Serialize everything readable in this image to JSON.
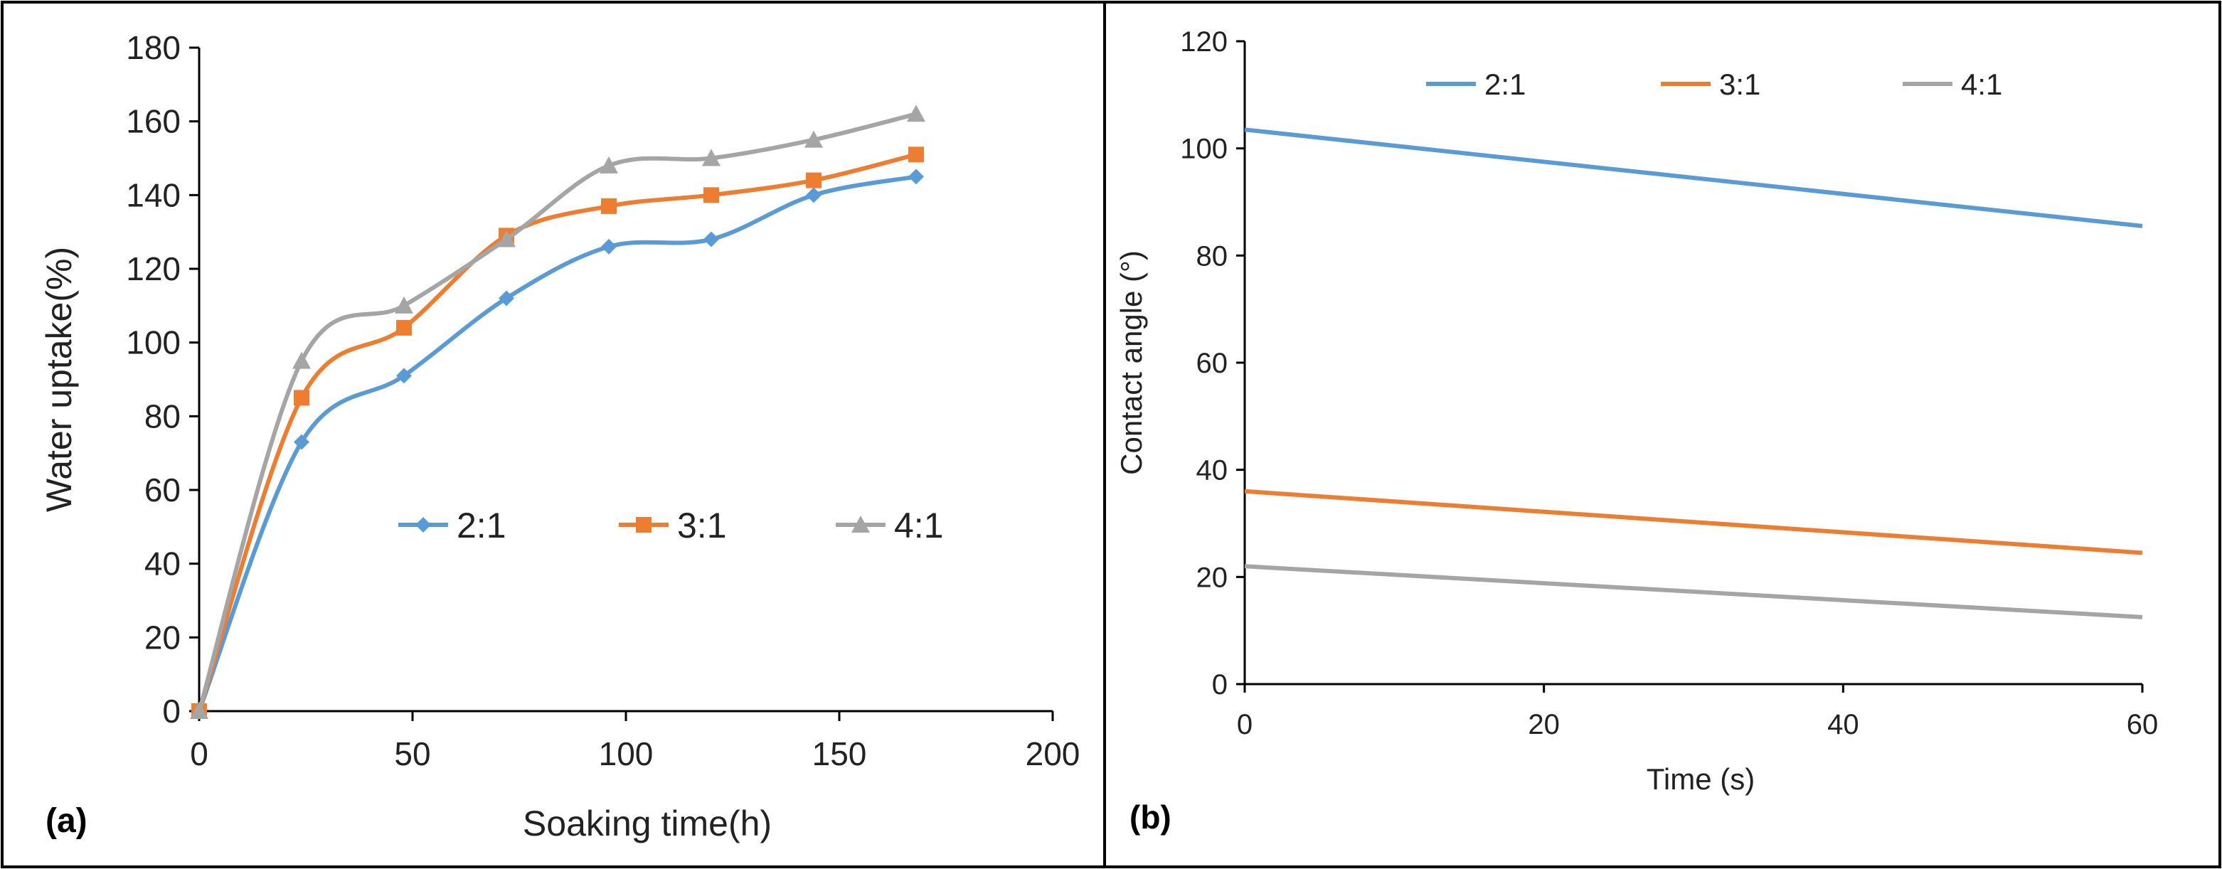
{
  "colors": {
    "series_blue": "#5B9BD5",
    "series_orange": "#ED7D31",
    "series_gray": "#A5A5A5",
    "axis": "#000000",
    "border": "#000000"
  },
  "chart_data": [
    {
      "type": "line",
      "panel_label": "(a)",
      "xlabel": "Soaking time(h)",
      "ylabel": "Water uptake(%)",
      "xlim": [
        0,
        200
      ],
      "ylim": [
        0,
        180
      ],
      "x_ticks": [
        0,
        50,
        100,
        150,
        200
      ],
      "y_ticks": [
        0,
        20,
        40,
        60,
        80,
        100,
        120,
        140,
        160,
        180
      ],
      "x_tick_labels": [
        "0",
        "50",
        "100",
        "150",
        "200"
      ],
      "y_tick_labels": [
        "0",
        "20",
        "40",
        "60",
        "80",
        "100",
        "120",
        "140",
        "160",
        "180"
      ],
      "grid": false,
      "smooth": true,
      "legend_position": "middle",
      "series": [
        {
          "name": "2:1",
          "marker": "diamond",
          "x": [
            0,
            24,
            48,
            72,
            96,
            120,
            144,
            168
          ],
          "y": [
            0,
            73,
            91,
            112,
            126,
            128,
            140,
            145
          ]
        },
        {
          "name": "3:1",
          "marker": "square",
          "x": [
            0,
            24,
            48,
            72,
            96,
            120,
            144,
            168
          ],
          "y": [
            0,
            85,
            104,
            129,
            137,
            140,
            144,
            151
          ]
        },
        {
          "name": "4:1",
          "marker": "triangle",
          "x": [
            0,
            24,
            48,
            72,
            96,
            120,
            144,
            168
          ],
          "y": [
            0,
            95,
            110,
            128,
            148,
            150,
            155,
            162
          ]
        }
      ]
    },
    {
      "type": "line",
      "panel_label": "(b)",
      "xlabel": "Time (s)",
      "ylabel": "Contact angle (°)",
      "xlim": [
        0,
        60
      ],
      "ylim": [
        0,
        120
      ],
      "x_ticks": [
        0,
        20,
        40,
        60
      ],
      "y_ticks": [
        0,
        20,
        40,
        60,
        80,
        100,
        120
      ],
      "x_tick_labels": [
        "0",
        "20",
        "40",
        "60"
      ],
      "y_tick_labels": [
        "0",
        "20",
        "40",
        "60",
        "80",
        "100",
        "120"
      ],
      "grid": false,
      "smooth": false,
      "legend_position": "top",
      "series": [
        {
          "name": "2:1",
          "x": [
            0,
            60
          ],
          "y": [
            103.5,
            85.5
          ]
        },
        {
          "name": "3:1",
          "x": [
            0,
            60
          ],
          "y": [
            36,
            24.5
          ]
        },
        {
          "name": "4:1",
          "x": [
            0,
            60
          ],
          "y": [
            22,
            12.5
          ]
        }
      ]
    }
  ]
}
